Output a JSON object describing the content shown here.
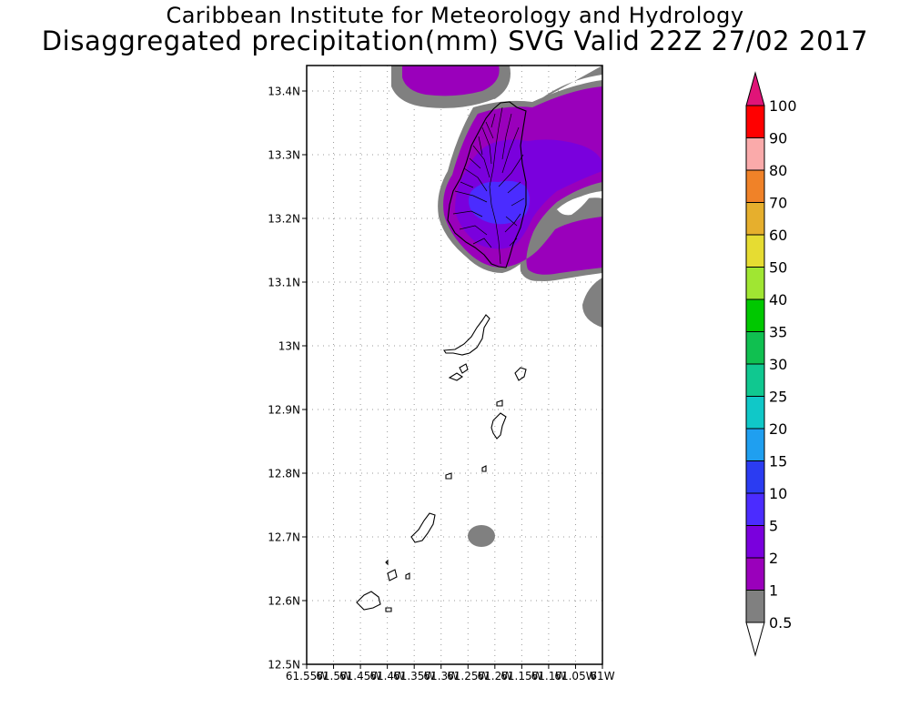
{
  "title_line1": "Caribbean Institute for Meteorology and Hydrology",
  "title_line2": "Disaggregated precipitation(mm) SVG Valid 22Z 27/02 2017",
  "map": {
    "lon_range": [
      -61.55,
      -61.0
    ],
    "lat_range": [
      12.5,
      13.44
    ],
    "lat_ticks": [
      {
        "value": 13.4,
        "label": "13.4N"
      },
      {
        "value": 13.3,
        "label": "13.3N"
      },
      {
        "value": 13.2,
        "label": "13.2N"
      },
      {
        "value": 13.1,
        "label": "13.1N"
      },
      {
        "value": 13.0,
        "label": "13N"
      },
      {
        "value": 12.9,
        "label": "12.9N"
      },
      {
        "value": 12.8,
        "label": "12.8N"
      },
      {
        "value": 12.7,
        "label": "12.7N"
      },
      {
        "value": 12.6,
        "label": "12.6N"
      },
      {
        "value": 12.5,
        "label": "12.5N"
      }
    ],
    "lon_ticks": [
      {
        "value": -61.55,
        "label": "61.55W"
      },
      {
        "value": -61.5,
        "label": "61.5W"
      },
      {
        "value": -61.45,
        "label": "61.45W"
      },
      {
        "value": -61.4,
        "label": "61.4W"
      },
      {
        "value": -61.35,
        "label": "61.35W"
      },
      {
        "value": -61.3,
        "label": "61.3W"
      },
      {
        "value": -61.25,
        "label": "61.25W"
      },
      {
        "value": -61.2,
        "label": "61.2W"
      },
      {
        "value": -61.15,
        "label": "61.15W"
      },
      {
        "value": -61.1,
        "label": "61.1W"
      },
      {
        "value": -61.05,
        "label": "61.05W"
      },
      {
        "value": -61.0,
        "label": "61W"
      }
    ]
  },
  "legend": {
    "levels": [
      {
        "label": "0.5",
        "color": "#808080"
      },
      {
        "label": "1",
        "color": "#9a00bb"
      },
      {
        "label": "2",
        "color": "#7a00dd"
      },
      {
        "label": "5",
        "color": "#4b2cff"
      },
      {
        "label": "10",
        "color": "#2b3cf2"
      },
      {
        "label": "15",
        "color": "#1f9ff0"
      },
      {
        "label": "20",
        "color": "#10c8c8"
      },
      {
        "label": "25",
        "color": "#10c890"
      },
      {
        "label": "30",
        "color": "#10c050"
      },
      {
        "label": "35",
        "color": "#00c800"
      },
      {
        "label": "40",
        "color": "#a0e632"
      },
      {
        "label": "50",
        "color": "#e6dc32"
      },
      {
        "label": "60",
        "color": "#e6af2d"
      },
      {
        "label": "70",
        "color": "#f08228"
      },
      {
        "label": "80",
        "color": "#faaaaa"
      },
      {
        "label": "90",
        "color": "#ff0000"
      },
      {
        "label": "100",
        "color": "#f03c3c"
      }
    ],
    "top_arrow_color": "#e01478",
    "bottom_arrow_color": "#ffffff"
  }
}
